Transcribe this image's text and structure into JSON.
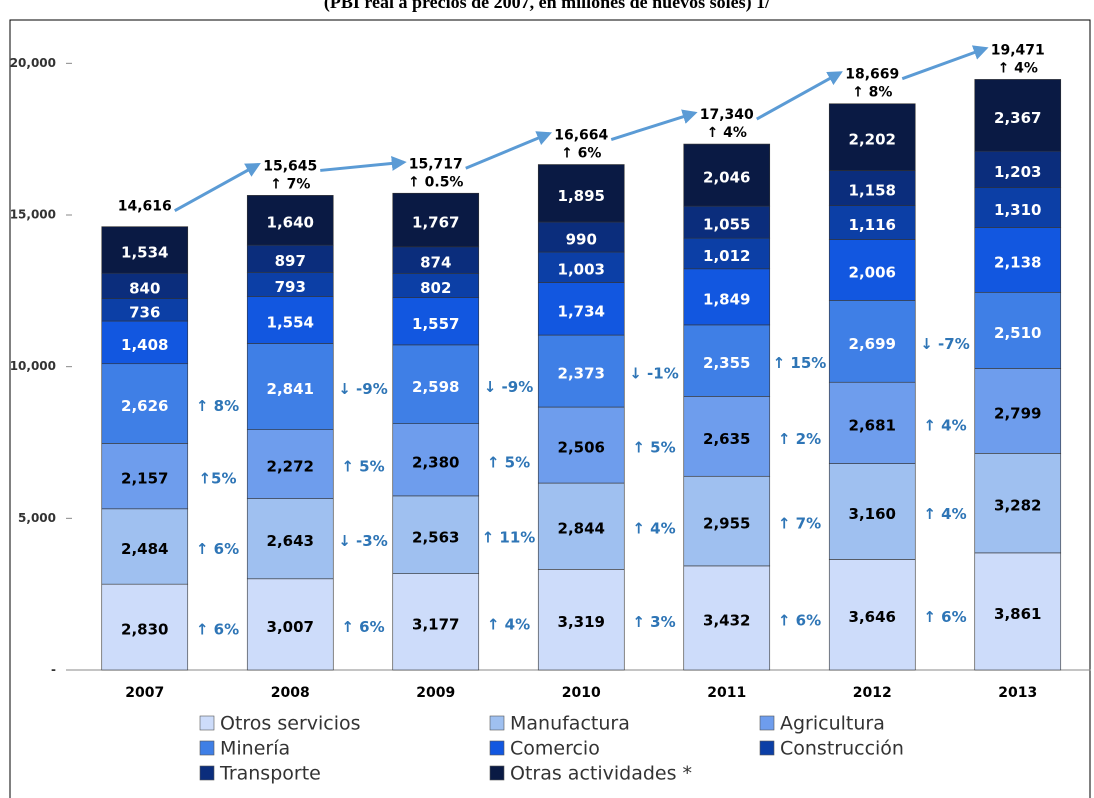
{
  "chart_data": {
    "type": "stacked_bar",
    "title": "(PBI real a precios de 2007, en millones de nuevos soles) 1/",
    "categories": [
      "2007",
      "2008",
      "2009",
      "2010",
      "2011",
      "2012",
      "2013"
    ],
    "series": [
      {
        "name": "Otros servicios",
        "color": "#cddcfa",
        "values": [
          2830,
          3007,
          3177,
          3319,
          3432,
          3646,
          3861
        ],
        "value_labels": [
          "2,830",
          "3,007",
          "3,177",
          "3,319",
          "3,432",
          "3,646",
          "3,861"
        ]
      },
      {
        "name": "Manufactura",
        "color": "#9fc0f0",
        "values": [
          2484,
          2643,
          2563,
          2844,
          2955,
          3160,
          3282
        ],
        "value_labels": [
          "2,484",
          "2,643",
          "2,563",
          "2,844",
          "2,955",
          "3,160",
          "3,282"
        ]
      },
      {
        "name": "Agricultura",
        "color": "#6e9ded",
        "values": [
          2157,
          2272,
          2380,
          2506,
          2635,
          2681,
          2799
        ],
        "value_labels": [
          "2,157",
          "2,272",
          "2,380",
          "2,506",
          "2,635",
          "2,681",
          "2,799"
        ]
      },
      {
        "name": "Minería",
        "color": "#3f7fe6",
        "values": [
          2626,
          2841,
          2598,
          2373,
          2355,
          2699,
          2510
        ],
        "value_labels": [
          "2,626",
          "2,841",
          "2,598",
          "2,373",
          "2,355",
          "2,699",
          "2,510"
        ]
      },
      {
        "name": "Comercio",
        "color": "#1257e0",
        "values": [
          1408,
          1554,
          1557,
          1734,
          1849,
          2006,
          2138
        ],
        "value_labels": [
          "1,408",
          "1,554",
          "1,557",
          "1,734",
          "1,849",
          "2,006",
          "2,138"
        ]
      },
      {
        "name": "Construcción",
        "color": "#0c3fa6",
        "values": [
          736,
          793,
          802,
          1003,
          1012,
          1116,
          1310
        ],
        "value_labels": [
          "736",
          "793",
          "802",
          "1,003",
          "1,012",
          "1,116",
          "1,310"
        ]
      },
      {
        "name": "Transporte",
        "color": "#0b2d7c",
        "values": [
          840,
          897,
          874,
          990,
          1055,
          1158,
          1203
        ],
        "value_labels": [
          "840",
          "897",
          "874",
          "990",
          "1,055",
          "1,158",
          "1,203"
        ]
      },
      {
        "name": "Otras actividades *",
        "color": "#0a1a44",
        "values": [
          1534,
          1640,
          1767,
          1895,
          2046,
          2202,
          2367
        ],
        "value_labels": [
          "1,534",
          "1,640",
          "1,767",
          "1,895",
          "2,046",
          "2,202",
          "2,367"
        ]
      }
    ],
    "totals": {
      "values": [
        14616,
        15645,
        15717,
        16664,
        17340,
        18669,
        19471
      ],
      "value_labels": [
        "14,616",
        "15,645",
        "15,717",
        "16,664",
        "17,340",
        "18,669",
        "19,471"
      ]
    },
    "total_growth": [
      null,
      "↑ 7%",
      "↑ 0.5%",
      "↑ 6%",
      "↑ 4%",
      "↑ 8%",
      "↑ 4%"
    ],
    "segment_growth": [
      [
        "↑ 6%",
        "↑ 6%",
        "↑5%",
        "↑ 8%"
      ],
      [
        "↑ 6%",
        "↓ -3%",
        "↑ 5%",
        "↓ -9%"
      ],
      [
        "↑ 4%",
        "↑ 11%",
        "↑ 5%",
        "↓ -9%"
      ],
      [
        "↑ 3%",
        "↑ 4%",
        "↑ 5%",
        "↓ -1%"
      ],
      [
        "↑ 6%",
        "↑ 7%",
        "↑ 2%",
        "↑ 15%"
      ],
      [
        "↑ 6%",
        "↑ 4%",
        "↑ 4%",
        "↓ -7%"
      ]
    ],
    "ylim": [
      0,
      21000
    ],
    "yticks": [
      {
        "value": 0,
        "label": "-"
      },
      {
        "value": 5000,
        "label": "5,000"
      },
      {
        "value": 10000,
        "label": "10,000"
      },
      {
        "value": 15000,
        "label": "15,000"
      },
      {
        "value": 20000,
        "label": "20,000"
      }
    ],
    "grid": false,
    "legend": "bottom"
  }
}
